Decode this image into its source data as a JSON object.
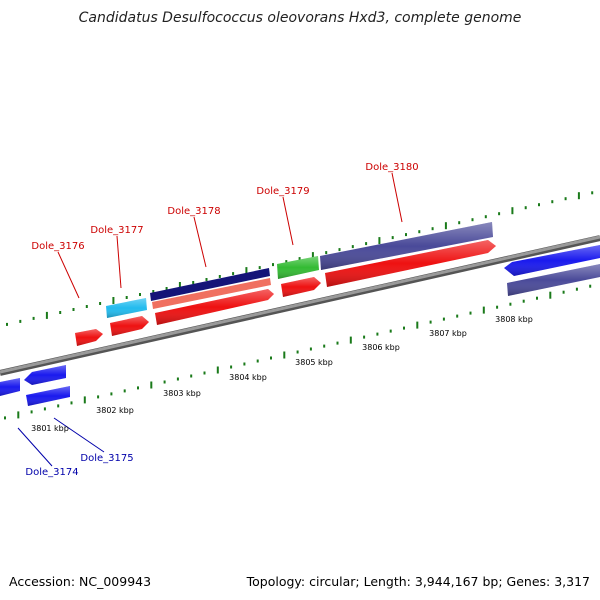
{
  "title": "Candidatus Desulfococcus oleovorans Hxd3, complete genome",
  "footer": {
    "accession": "Accession: NC_009943",
    "topology": "Topology: circular; Length: 3,944,167 bp; Genes: 3,317"
  },
  "colors": {
    "forward_label": "#cc0000",
    "reverse_label": "#0000aa",
    "backbone": "#8a8a8a",
    "tick": "#1a7a1a"
  },
  "genes": [
    {
      "name": "Dole_3174",
      "strand": "reverse",
      "color": "#1a1aee"
    },
    {
      "name": "Dole_3175",
      "strand": "reverse",
      "color": "#1a1aee"
    },
    {
      "name": "Dole_3176",
      "strand": "forward",
      "color": "#ee1111"
    },
    {
      "name": "Dole_3177",
      "strand": "forward",
      "color": "#ee1111"
    },
    {
      "name": "Dole_3178",
      "strand": "forward",
      "color": "#ee1111"
    },
    {
      "name": "Dole_3179",
      "strand": "forward",
      "color": "#ee1111"
    },
    {
      "name": "Dole_3180",
      "strand": "forward",
      "color": "#ee1111"
    }
  ],
  "features": [
    {
      "id": "light-blue-box",
      "color": "#22bbee"
    },
    {
      "id": "navy-bar",
      "color": "#141478"
    },
    {
      "id": "salmon-bar",
      "color": "#f07060"
    },
    {
      "id": "green-box",
      "color": "#33bb33"
    },
    {
      "id": "purple-bar",
      "color": "#4a4a99"
    },
    {
      "id": "blue-arrow-right",
      "color": "#1a1aee"
    },
    {
      "id": "purple-bar-right",
      "color": "#4a4a99"
    }
  ],
  "scale_labels": [
    "3801 kbp",
    "3802 kbp",
    "3803 kbp",
    "3804 kbp",
    "3805 kbp",
    "3806 kbp",
    "3807 kbp",
    "3808 kbp"
  ]
}
